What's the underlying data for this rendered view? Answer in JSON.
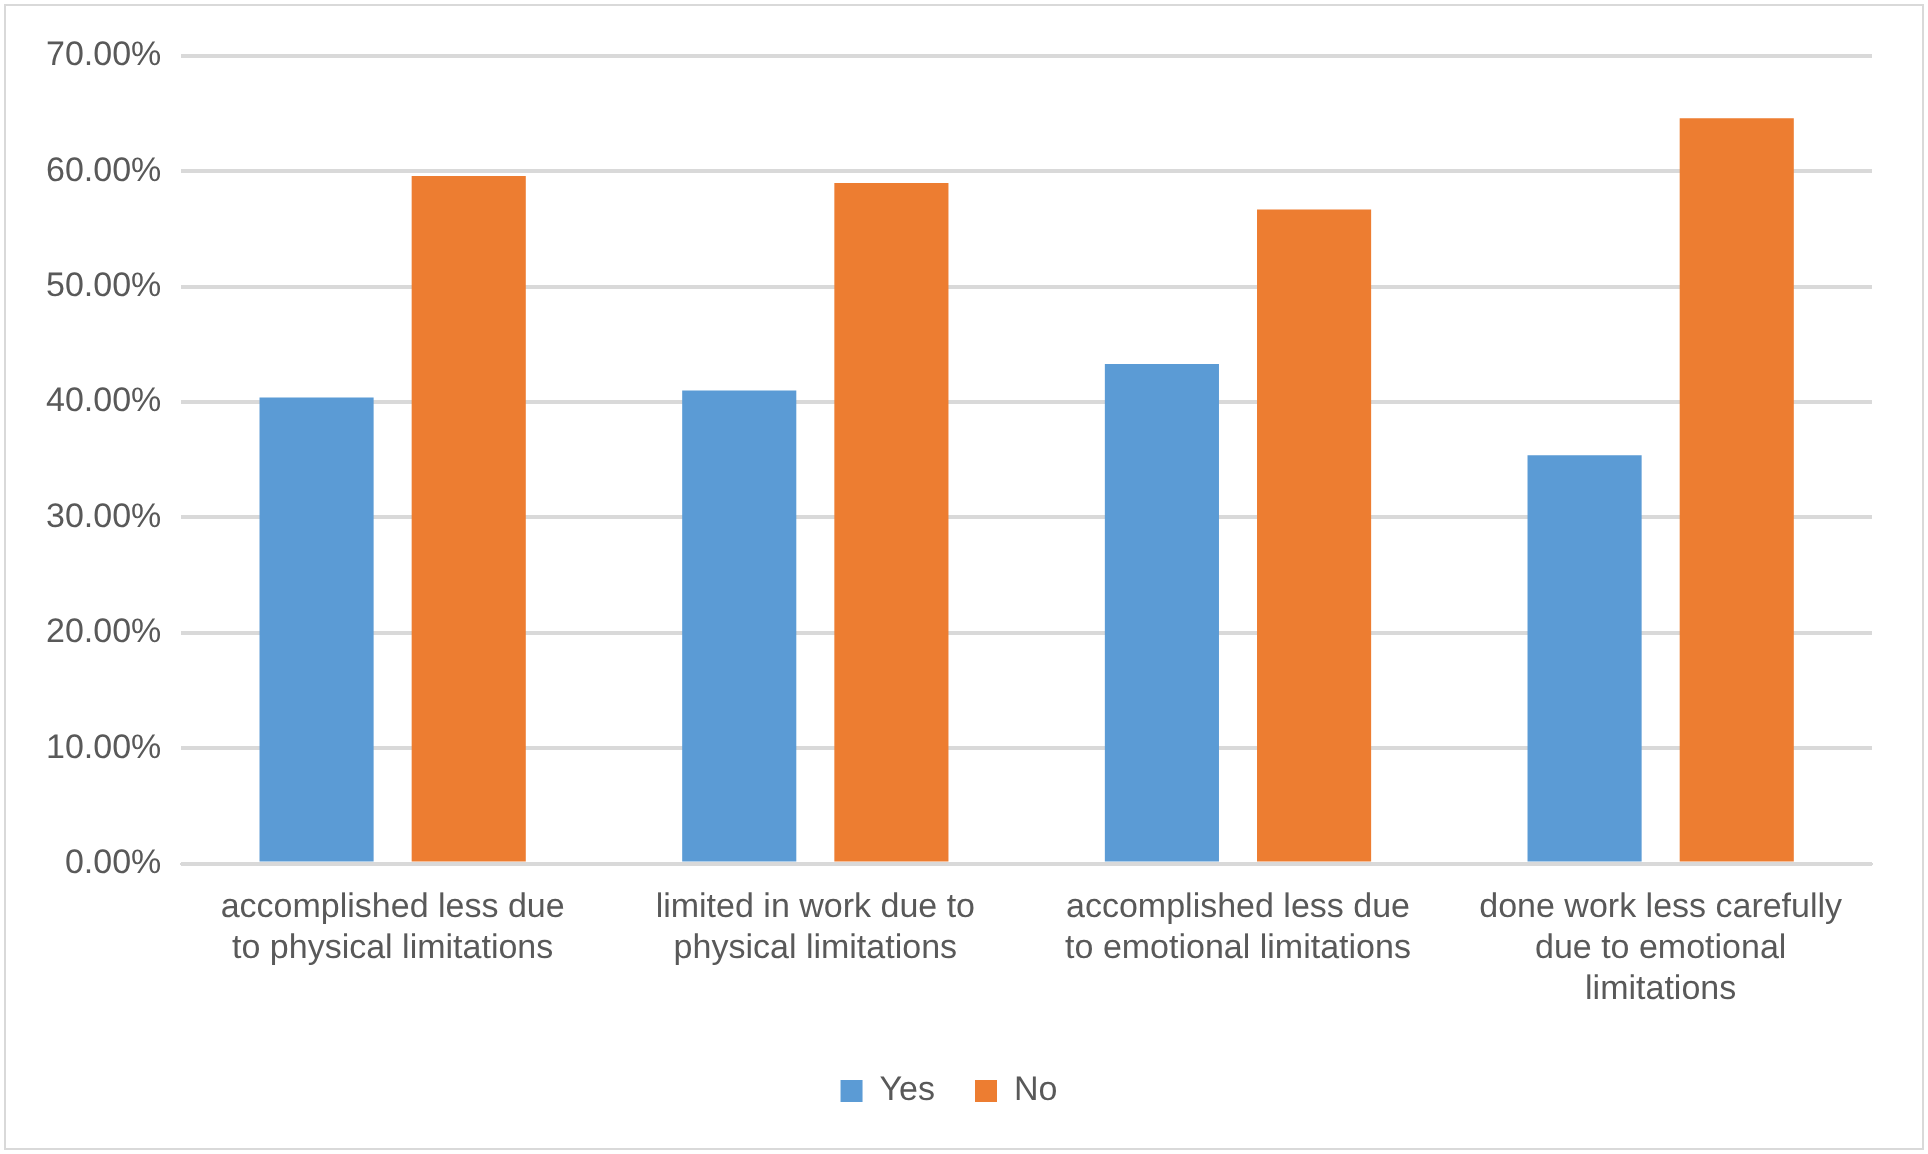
{
  "chart_data": {
    "type": "bar",
    "categories": [
      "accomplished less due to physical limitations",
      "limited in work due to physical limitations",
      "accomplished less due to emotional limitations",
      "done work less carefully due to emotional limitations"
    ],
    "series": [
      {
        "name": "Yes",
        "color": "#5b9bd5",
        "values": [
          40.4,
          41.0,
          43.3,
          35.4
        ]
      },
      {
        "name": "No",
        "color": "#ed7d31",
        "values": [
          59.6,
          59.0,
          56.7,
          64.6
        ]
      }
    ],
    "ylim": [
      0,
      70
    ],
    "yticks": [
      {
        "value": 0,
        "label": "0.00%"
      },
      {
        "value": 10,
        "label": "10.00%"
      },
      {
        "value": 20,
        "label": "20.00%"
      },
      {
        "value": 30,
        "label": "30.00%"
      },
      {
        "value": 40,
        "label": "40.00%"
      },
      {
        "value": 50,
        "label": "50.00%"
      },
      {
        "value": 60,
        "label": "60.00%"
      },
      {
        "value": 70,
        "label": "70.00%"
      }
    ],
    "grid": "y",
    "legend": "bottom"
  }
}
